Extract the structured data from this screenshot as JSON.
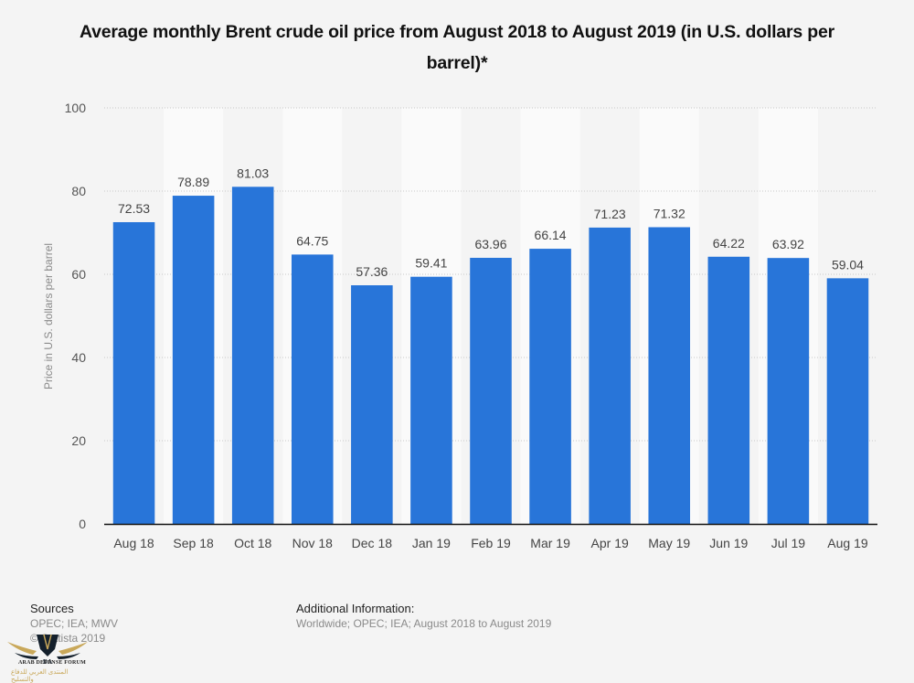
{
  "chart_data": {
    "type": "bar",
    "title": "Average monthly Brent crude oil price from August 2018 to August 2019 (in U.S. dollars per barrel)*",
    "xlabel": "",
    "ylabel": "Price in U.S. dollars per barrel",
    "ylim": [
      0,
      100
    ],
    "yticks": [
      0,
      20,
      40,
      60,
      80,
      100
    ],
    "grid": true,
    "legend": "none",
    "bar_color": "#2875d9",
    "categories": [
      "Aug 18",
      "Sep 18",
      "Oct 18",
      "Nov 18",
      "Dec 18",
      "Jan 19",
      "Feb 19",
      "Mar 19",
      "Apr 19",
      "May 19",
      "Jun 19",
      "Jul 19",
      "Aug 19"
    ],
    "values": [
      72.53,
      78.89,
      81.03,
      64.75,
      57.36,
      59.41,
      63.96,
      66.14,
      71.23,
      71.32,
      64.22,
      63.92,
      59.04
    ],
    "data_labels": [
      "72.53",
      "78.89",
      "81.03",
      "64.75",
      "57.36",
      "59.41",
      "63.96",
      "66.14",
      "71.23",
      "71.32",
      "64.22",
      "63.92",
      "59.04"
    ]
  },
  "footer": {
    "sources_heading": "Sources",
    "sources_lines": [
      "OPEC; IEA; MWV",
      "© Statista 2019"
    ],
    "additional_heading": "Additional Information:",
    "additional_text": "Worldwide; OPEC; IEA; August 2018 to August 2019"
  },
  "watermark": {
    "logo_text": "DA",
    "name": "ARAB DEFENSE FORUM",
    "arabic_name": "المنتدى العربي للدفاع والتسليح"
  }
}
